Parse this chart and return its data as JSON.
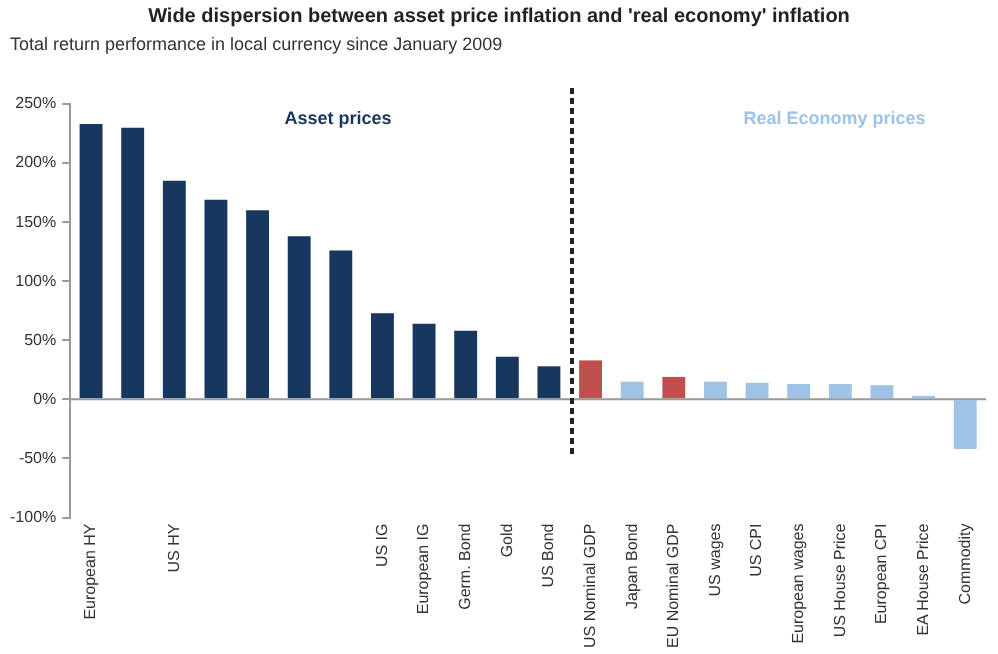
{
  "chart_data": {
    "type": "bar",
    "title": "Wide dispersion between asset price inflation and 'real economy' inflation",
    "subtitle": "Total return performance in local currency since January 2009",
    "categories": [
      "European HY",
      null,
      "US HY",
      null,
      null,
      null,
      null,
      "US IG",
      "European IG",
      "Germ. Bond",
      "Gold",
      "US Bond",
      "US Nominal GDP",
      "Japan Bond",
      "EU Nominal GDP",
      "US wages",
      "US CPI",
      "European wages",
      "US House Price",
      "European CPI",
      "EA House Price",
      "Commodity"
    ],
    "values": [
      233,
      230,
      185,
      169,
      160,
      138,
      126,
      73,
      64,
      58,
      36,
      28,
      33,
      15,
      19,
      15,
      14,
      13,
      13,
      12,
      3,
      -42
    ],
    "colors": [
      "#17375e",
      "#17375e",
      "#17375e",
      "#17375e",
      "#17375e",
      "#17375e",
      "#17375e",
      "#17375e",
      "#17375e",
      "#17375e",
      "#17375e",
      "#17375e",
      "#c0504d",
      "#9dc3e6",
      "#c0504d",
      "#9dc3e6",
      "#9dc3e6",
      "#9dc3e6",
      "#9dc3e6",
      "#9dc3e6",
      "#9dc3e6",
      "#9dc3e6"
    ],
    "ylim": [
      -100,
      250
    ],
    "yticks": [
      {
        "value": -100,
        "label": "-100%"
      },
      {
        "value": -50,
        "label": "-50%"
      },
      {
        "value": 0,
        "label": "0%"
      },
      {
        "value": 50,
        "label": "50%"
      },
      {
        "value": 100,
        "label": "100%"
      },
      {
        "value": 150,
        "label": "150%"
      },
      {
        "value": 200,
        "label": "200%"
      },
      {
        "value": 250,
        "label": "250%"
      }
    ],
    "annotations": [
      "Asset prices",
      "Real Economy prices"
    ],
    "ref_lines": [
      {
        "axis": "y",
        "value": 0,
        "color": "#999999"
      }
    ],
    "grid": false,
    "legend": false
  }
}
